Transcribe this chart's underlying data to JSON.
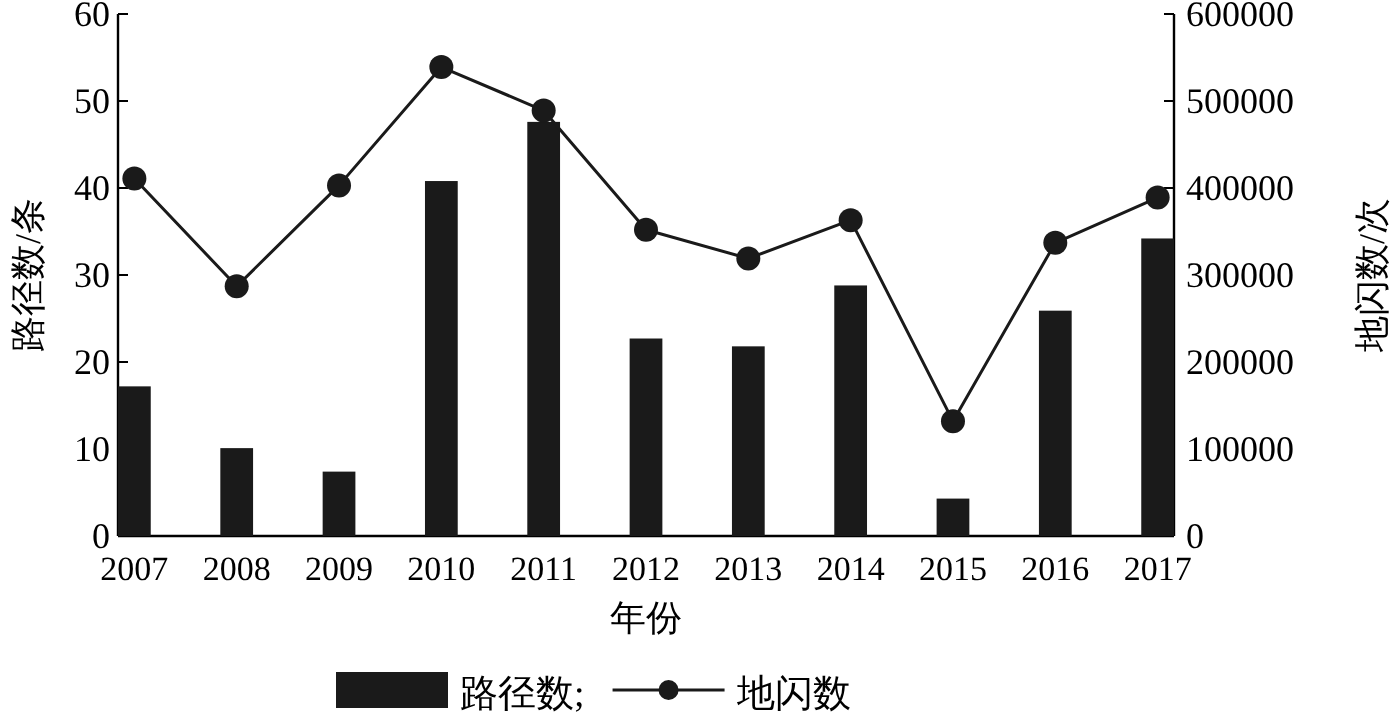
{
  "chart_data": {
    "type": "bar",
    "xlabel": "年份",
    "ylabel": "路径数/条",
    "y2label": "地闪数/次",
    "categories": [
      "2007",
      "2008",
      "2009",
      "2010",
      "2011",
      "2012",
      "2013",
      "2014",
      "2015",
      "2016",
      "2017"
    ],
    "series": [
      {
        "name": "路径数;",
        "type": "bar",
        "color": "#1a1a1a",
        "values": [
          17.2,
          10.1,
          7.4,
          40.8,
          47.6,
          22.7,
          21.8,
          28.8,
          4.3,
          25.9,
          34.2
        ]
      },
      {
        "name": "地闪数",
        "type": "line",
        "axis": "y2",
        "color": "#1a1a1a",
        "marker": "circle",
        "values": [
          411000,
          287000,
          403000,
          539000,
          489000,
          352000,
          319000,
          363000,
          132000,
          337000,
          389000
        ]
      }
    ],
    "ylim": [
      0,
      60
    ],
    "yticks": [
      0,
      10,
      20,
      30,
      40,
      50,
      60
    ],
    "y2lim": [
      0,
      600000
    ],
    "y2ticks": [
      0,
      100000,
      200000,
      300000,
      400000,
      500000,
      600000
    ],
    "grid": false,
    "legend": "bottom"
  }
}
